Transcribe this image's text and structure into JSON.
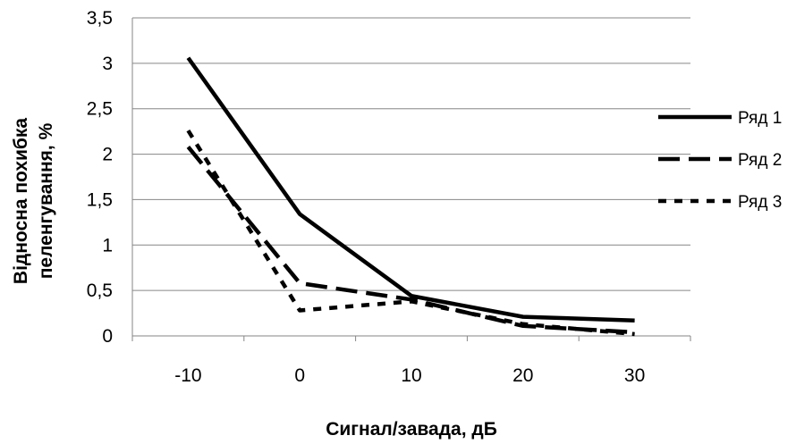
{
  "chart_data": {
    "type": "line",
    "categories": [
      "-10",
      "0",
      "10",
      "20",
      "30"
    ],
    "series": [
      {
        "name": "Ряд 1",
        "values": [
          3.06,
          1.34,
          0.44,
          0.21,
          0.17
        ],
        "dash": "solid"
      },
      {
        "name": "Ряд 2",
        "values": [
          2.08,
          0.58,
          0.4,
          0.11,
          0.04
        ],
        "dash": "long-dash"
      },
      {
        "name": "Ряд 3",
        "values": [
          2.26,
          0.28,
          0.38,
          0.13,
          0.02
        ],
        "dash": "short-dash"
      }
    ],
    "xlabel": "Сигнал/завада, дБ",
    "ylabel_line1": "Відносна похибка",
    "ylabel_line2": "пеленгування, %",
    "ylim": [
      0,
      3.5
    ],
    "yticks": [
      "0",
      "0,5",
      "1",
      "1,5",
      "2",
      "2,5",
      "3",
      "3,5"
    ],
    "grid": "horizontal",
    "legend": "right",
    "line_color": "#000000",
    "grid_color": "#868686"
  }
}
